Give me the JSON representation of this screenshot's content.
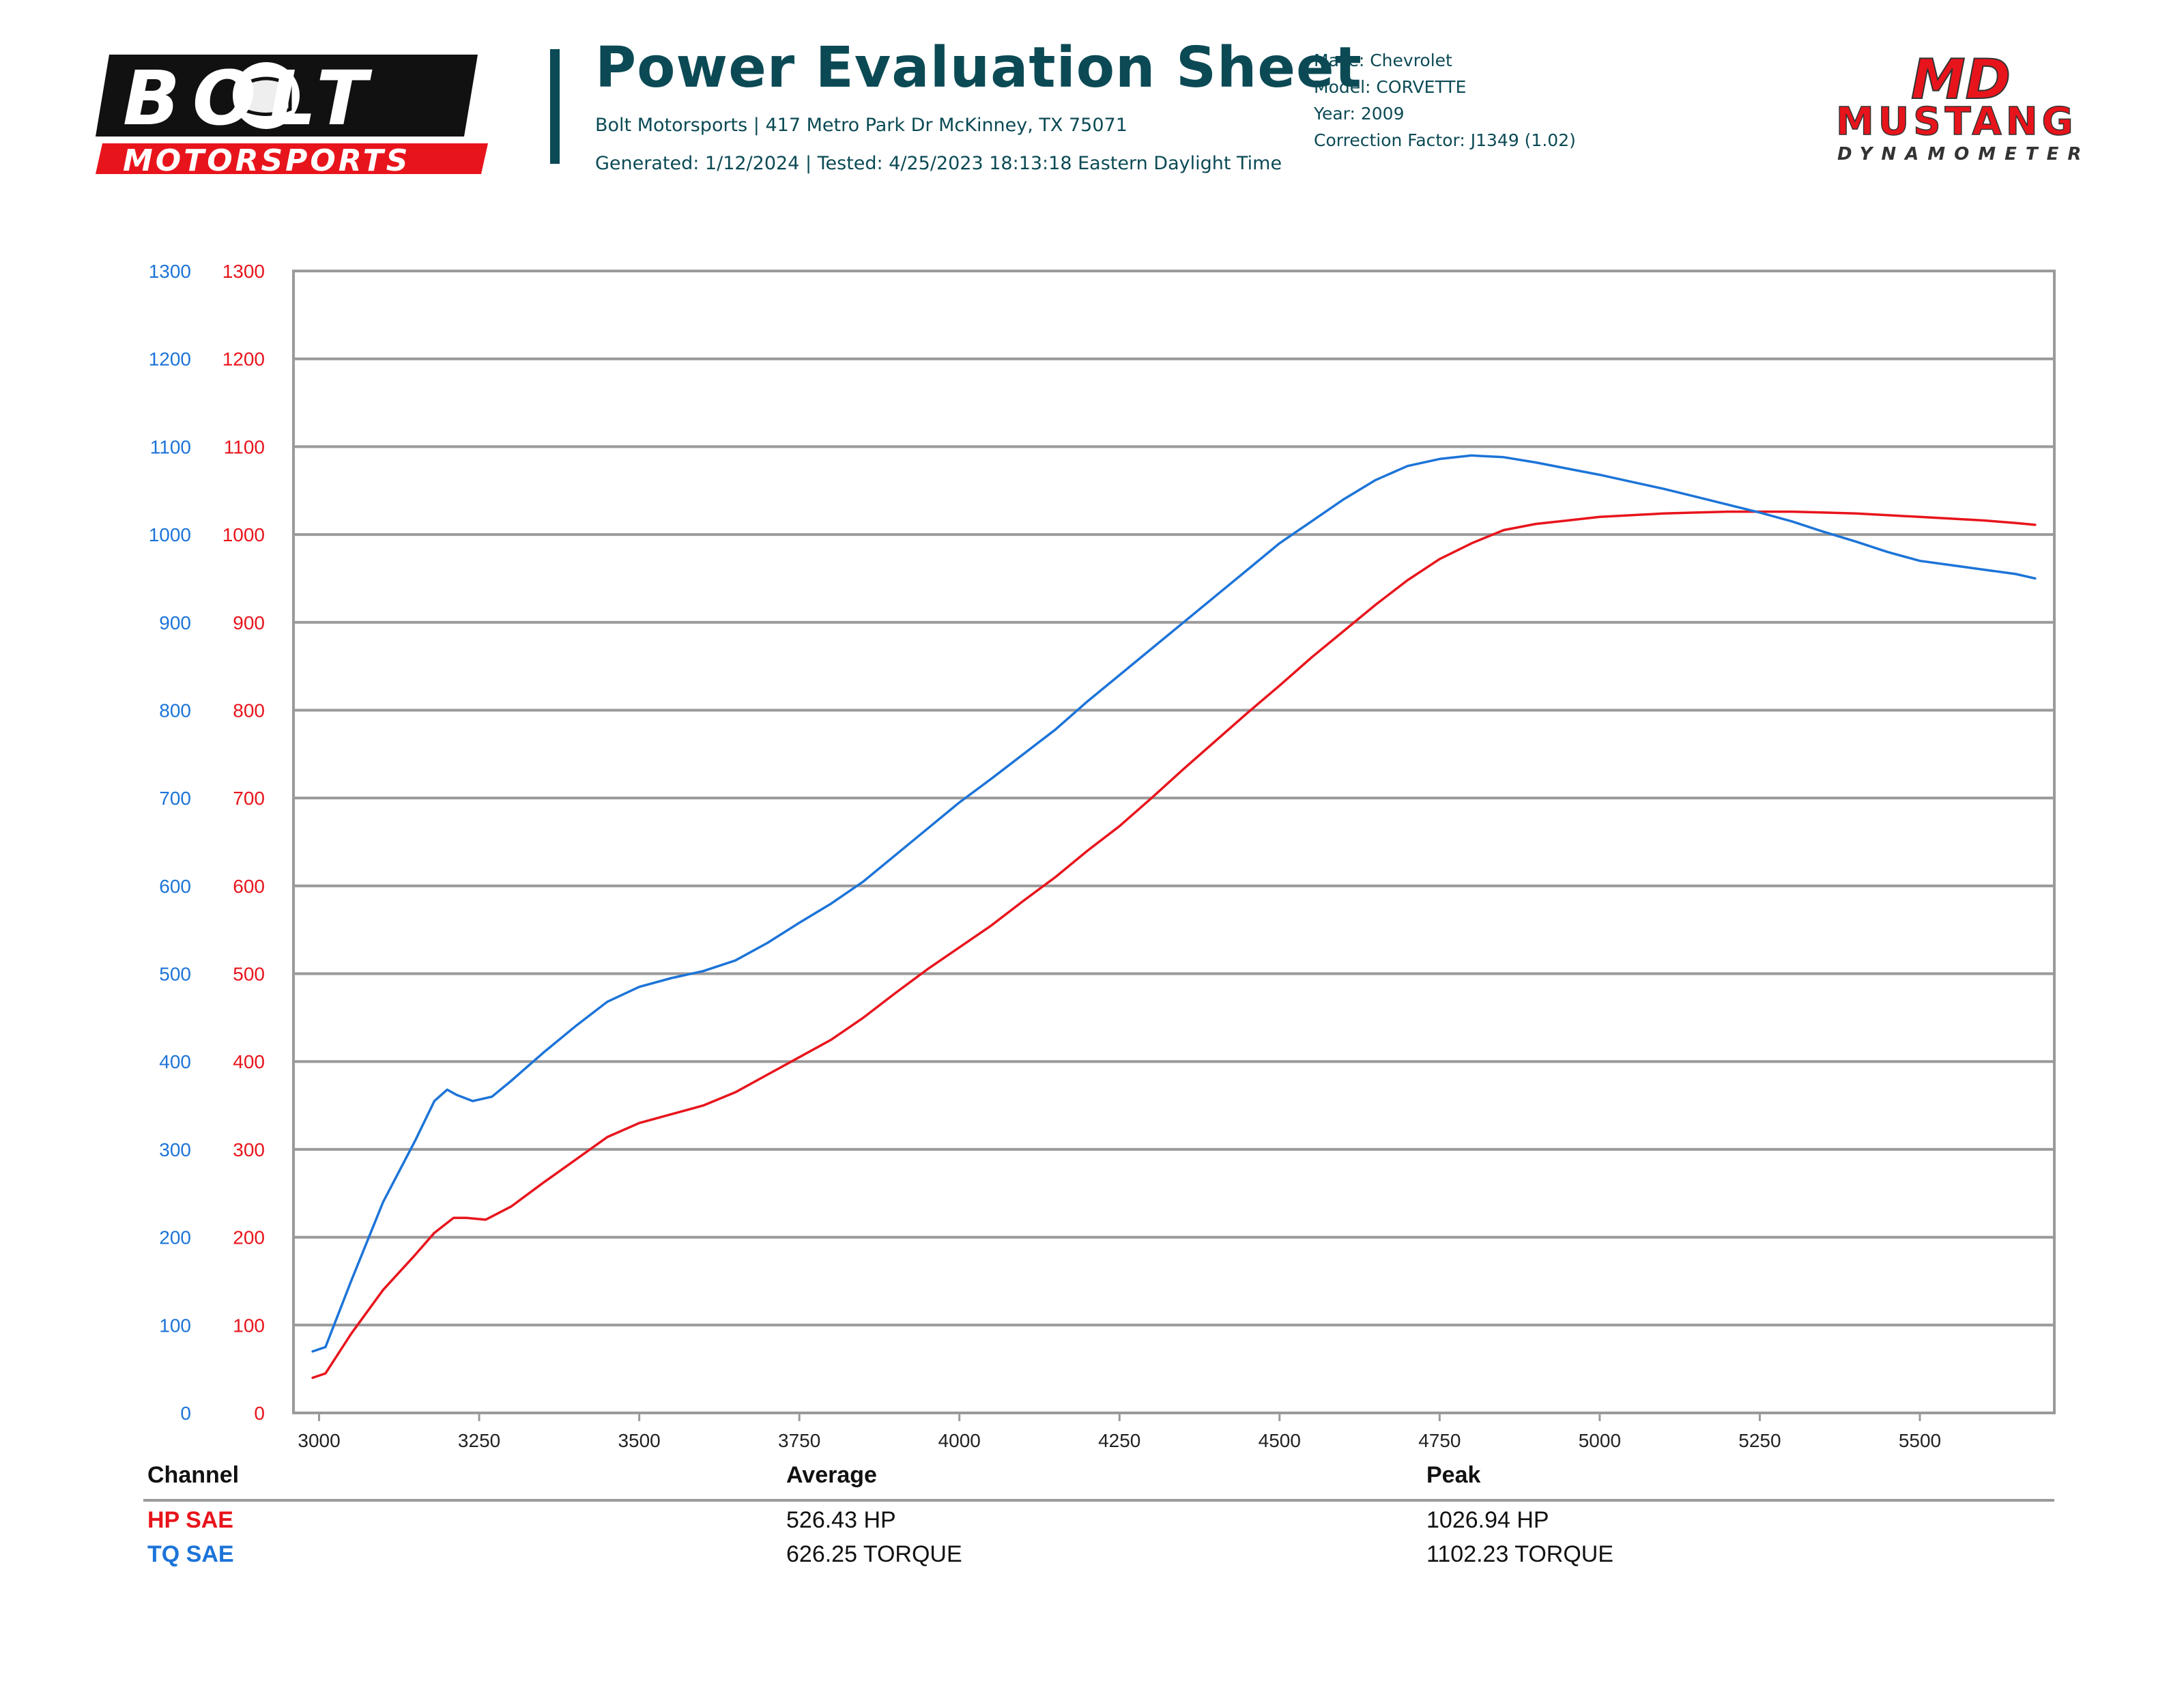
{
  "header": {
    "title": "Power Evaluation Sheet",
    "address": "Bolt Motorsports | 417 Metro Park Dr McKinney, TX 75071",
    "generated": "Generated: 1/12/2024 | Tested: 4/25/2023 18:13:18 Eastern Daylight Time"
  },
  "vehicle": {
    "make": "Make: Chevrolet",
    "model": "Model: CORVETTE",
    "year": "Year: 2009",
    "correction": "Correction Factor: J1349 (1.02)"
  },
  "logos": {
    "left_top": "BOLT",
    "left_bottom": "MOTORSPORTS",
    "right_top": "MD",
    "right_mid": "MUSTANG",
    "right_bottom": "DYNAMOMETER"
  },
  "colors": {
    "hp": "#e8141c",
    "tq": "#1c74d8",
    "header": "#0b4a55",
    "grid": "#9a9a9a"
  },
  "chart_data": {
    "type": "line",
    "title": "",
    "xlabel": "",
    "ylabel": "",
    "xlim": [
      2960,
      5710
    ],
    "ylim": [
      0,
      1300
    ],
    "x_ticks": [
      3000,
      3250,
      3500,
      3750,
      4000,
      4250,
      4500,
      4750,
      5000,
      5250,
      5500
    ],
    "y_ticks": [
      0,
      100,
      200,
      300,
      400,
      500,
      600,
      700,
      800,
      900,
      1000,
      1100,
      1200,
      1300
    ],
    "grid": true,
    "series": [
      {
        "name": "HP SAE",
        "color": "#e8141c",
        "axis": "right",
        "x": [
          2990,
          3010,
          3050,
          3100,
          3150,
          3180,
          3210,
          3230,
          3260,
          3300,
          3350,
          3400,
          3450,
          3500,
          3550,
          3600,
          3650,
          3700,
          3750,
          3800,
          3850,
          3900,
          3950,
          4000,
          4050,
          4100,
          4150,
          4200,
          4250,
          4300,
          4350,
          4400,
          4450,
          4500,
          4550,
          4600,
          4650,
          4700,
          4750,
          4800,
          4850,
          4900,
          4950,
          5000,
          5050,
          5100,
          5150,
          5200,
          5250,
          5300,
          5350,
          5400,
          5450,
          5500,
          5550,
          5600,
          5650,
          5680
        ],
        "values": [
          40,
          45,
          90,
          140,
          180,
          205,
          222,
          222,
          220,
          235,
          262,
          288,
          314,
          330,
          340,
          350,
          365,
          385,
          405,
          425,
          450,
          478,
          505,
          530,
          555,
          583,
          610,
          640,
          668,
          700,
          733,
          765,
          797,
          828,
          860,
          890,
          920,
          948,
          972,
          990,
          1005,
          1012,
          1016,
          1020,
          1022,
          1024,
          1025,
          1026,
          1026,
          1026,
          1025,
          1024,
          1022,
          1020,
          1018,
          1016,
          1013,
          1011
        ]
      },
      {
        "name": "TQ SAE",
        "color": "#1c74d8",
        "axis": "left",
        "x": [
          2990,
          3010,
          3050,
          3100,
          3150,
          3180,
          3200,
          3215,
          3240,
          3270,
          3300,
          3350,
          3400,
          3450,
          3500,
          3550,
          3600,
          3650,
          3700,
          3750,
          3800,
          3850,
          3900,
          3950,
          4000,
          4050,
          4100,
          4150,
          4200,
          4250,
          4300,
          4350,
          4400,
          4450,
          4500,
          4550,
          4600,
          4650,
          4700,
          4750,
          4800,
          4850,
          4900,
          4950,
          5000,
          5050,
          5100,
          5150,
          5200,
          5250,
          5300,
          5350,
          5400,
          5450,
          5500,
          5550,
          5600,
          5650,
          5680
        ],
        "values": [
          70,
          75,
          150,
          240,
          310,
          355,
          368,
          362,
          355,
          360,
          378,
          410,
          440,
          468,
          485,
          495,
          503,
          515,
          535,
          558,
          580,
          605,
          635,
          665,
          695,
          722,
          750,
          778,
          810,
          840,
          870,
          900,
          930,
          960,
          990,
          1015,
          1040,
          1062,
          1078,
          1086,
          1090,
          1088,
          1082,
          1075,
          1068,
          1060,
          1052,
          1043,
          1034,
          1025,
          1015,
          1003,
          992,
          980,
          970,
          965,
          960,
          955,
          950
        ]
      }
    ]
  },
  "table": {
    "headers": [
      "Channel",
      "Average",
      "Peak"
    ],
    "rows": [
      {
        "channel": "HP SAE",
        "average": "526.43 HP",
        "peak": "1026.94 HP"
      },
      {
        "channel": "TQ SAE",
        "average": "626.25 TORQUE",
        "peak": "1102.23 TORQUE"
      }
    ]
  }
}
